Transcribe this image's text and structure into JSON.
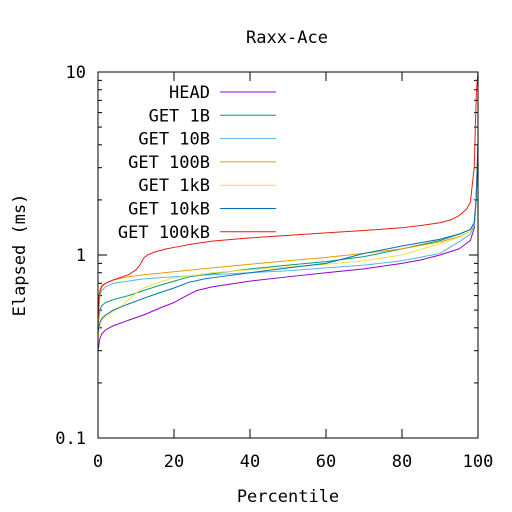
{
  "chart_data": {
    "type": "line",
    "title": "Raxx-Ace",
    "xlabel": "Percentile",
    "ylabel": "Elapsed (ms)",
    "xlim": [
      0,
      100
    ],
    "ylim": [
      0.1,
      10
    ],
    "y_scale": "log",
    "x_ticks": [
      0,
      20,
      40,
      60,
      80,
      100
    ],
    "x_tick_labels": [
      "0",
      "20",
      "40",
      "60",
      "80",
      "100"
    ],
    "y_ticks": [
      0.1,
      1,
      10
    ],
    "y_tick_labels": [
      "0.1",
      "1",
      "10"
    ],
    "grid": false,
    "legend_position": "top-left",
    "series": [
      {
        "name": "HEAD",
        "color": "#9400d3",
        "x": [
          0,
          0.5,
          1,
          2,
          4,
          8,
          12,
          16,
          20,
          22,
          24,
          26,
          30,
          40,
          50,
          60,
          70,
          80,
          85,
          90,
          95,
          98,
          99,
          99.5,
          100
        ],
        "y": [
          0.3,
          0.35,
          0.37,
          0.39,
          0.41,
          0.44,
          0.47,
          0.51,
          0.55,
          0.58,
          0.61,
          0.64,
          0.67,
          0.72,
          0.76,
          0.8,
          0.84,
          0.9,
          0.94,
          1.0,
          1.08,
          1.2,
          1.4,
          2.0,
          4.0
        ]
      },
      {
        "name": "GET 1B",
        "color": "#009e73",
        "x": [
          0,
          0.5,
          1,
          2,
          4,
          8,
          12,
          16,
          20,
          24,
          28,
          32,
          40,
          50,
          60,
          70,
          80,
          90,
          95,
          98,
          99,
          99.5,
          100
        ],
        "y": [
          0.42,
          0.5,
          0.53,
          0.55,
          0.57,
          0.6,
          0.64,
          0.68,
          0.72,
          0.76,
          0.78,
          0.8,
          0.84,
          0.88,
          0.92,
          0.98,
          1.08,
          1.2,
          1.3,
          1.38,
          1.5,
          2.0,
          4.0
        ]
      },
      {
        "name": "GET 10B",
        "color": "#56b4e9",
        "x": [
          0,
          0.5,
          1,
          2,
          4,
          8,
          12,
          20,
          30,
          40,
          50,
          60,
          70,
          80,
          90,
          95,
          98,
          99,
          99.5,
          100
        ],
        "y": [
          0.45,
          0.6,
          0.64,
          0.67,
          0.7,
          0.72,
          0.74,
          0.76,
          0.78,
          0.8,
          0.82,
          0.85,
          0.88,
          0.93,
          1.02,
          1.18,
          1.3,
          1.45,
          1.9,
          4.0
        ]
      },
      {
        "name": "GET 100B",
        "color": "#e69f00",
        "x": [
          0,
          0.5,
          1,
          2,
          4,
          8,
          12,
          20,
          30,
          40,
          50,
          60,
          70,
          80,
          90,
          95,
          98,
          99,
          99.5,
          100
        ],
        "y": [
          0.4,
          0.62,
          0.67,
          0.7,
          0.73,
          0.76,
          0.78,
          0.81,
          0.85,
          0.89,
          0.93,
          0.97,
          1.02,
          1.08,
          1.18,
          1.26,
          1.35,
          1.5,
          2.0,
          4.0
        ]
      },
      {
        "name": "GET 1kB",
        "color": "#f0e442",
        "x": [
          0,
          0.5,
          1,
          2,
          4,
          6,
          8,
          10,
          12,
          16,
          20,
          30,
          40,
          50,
          60,
          70,
          80,
          90,
          95,
          98,
          99,
          99.5,
          100
        ],
        "y": [
          0.35,
          0.42,
          0.44,
          0.46,
          0.49,
          0.52,
          0.57,
          0.62,
          0.66,
          0.71,
          0.75,
          0.8,
          0.83,
          0.86,
          0.89,
          0.93,
          1.0,
          1.15,
          1.25,
          1.35,
          1.5,
          2.0,
          4.0
        ]
      },
      {
        "name": "GET 10kB",
        "color": "#0072b2",
        "x": [
          0,
          0.5,
          1,
          2,
          4,
          8,
          12,
          16,
          20,
          24,
          28,
          32,
          40,
          50,
          60,
          70,
          80,
          90,
          95,
          98,
          99,
          99.5,
          100
        ],
        "y": [
          0.38,
          0.43,
          0.45,
          0.47,
          0.5,
          0.54,
          0.58,
          0.62,
          0.66,
          0.71,
          0.74,
          0.76,
          0.8,
          0.85,
          0.9,
          1.02,
          1.12,
          1.22,
          1.3,
          1.38,
          1.5,
          2.0,
          4.0
        ]
      },
      {
        "name": "GET 100kB",
        "color": "#e51e10",
        "x": [
          0,
          0.3,
          0.6,
          1,
          2,
          4,
          8,
          10,
          11,
          12,
          13,
          15,
          18,
          20,
          25,
          30,
          40,
          50,
          60,
          70,
          80,
          85,
          90,
          93,
          95,
          97,
          98,
          99,
          99.3,
          99.6,
          100
        ],
        "y": [
          0.45,
          0.6,
          0.65,
          0.68,
          0.7,
          0.73,
          0.78,
          0.83,
          0.88,
          0.96,
          1.0,
          1.04,
          1.08,
          1.1,
          1.15,
          1.19,
          1.24,
          1.28,
          1.32,
          1.36,
          1.41,
          1.45,
          1.5,
          1.56,
          1.64,
          1.78,
          1.95,
          3.0,
          5.0,
          8.0,
          10.0
        ]
      }
    ]
  }
}
